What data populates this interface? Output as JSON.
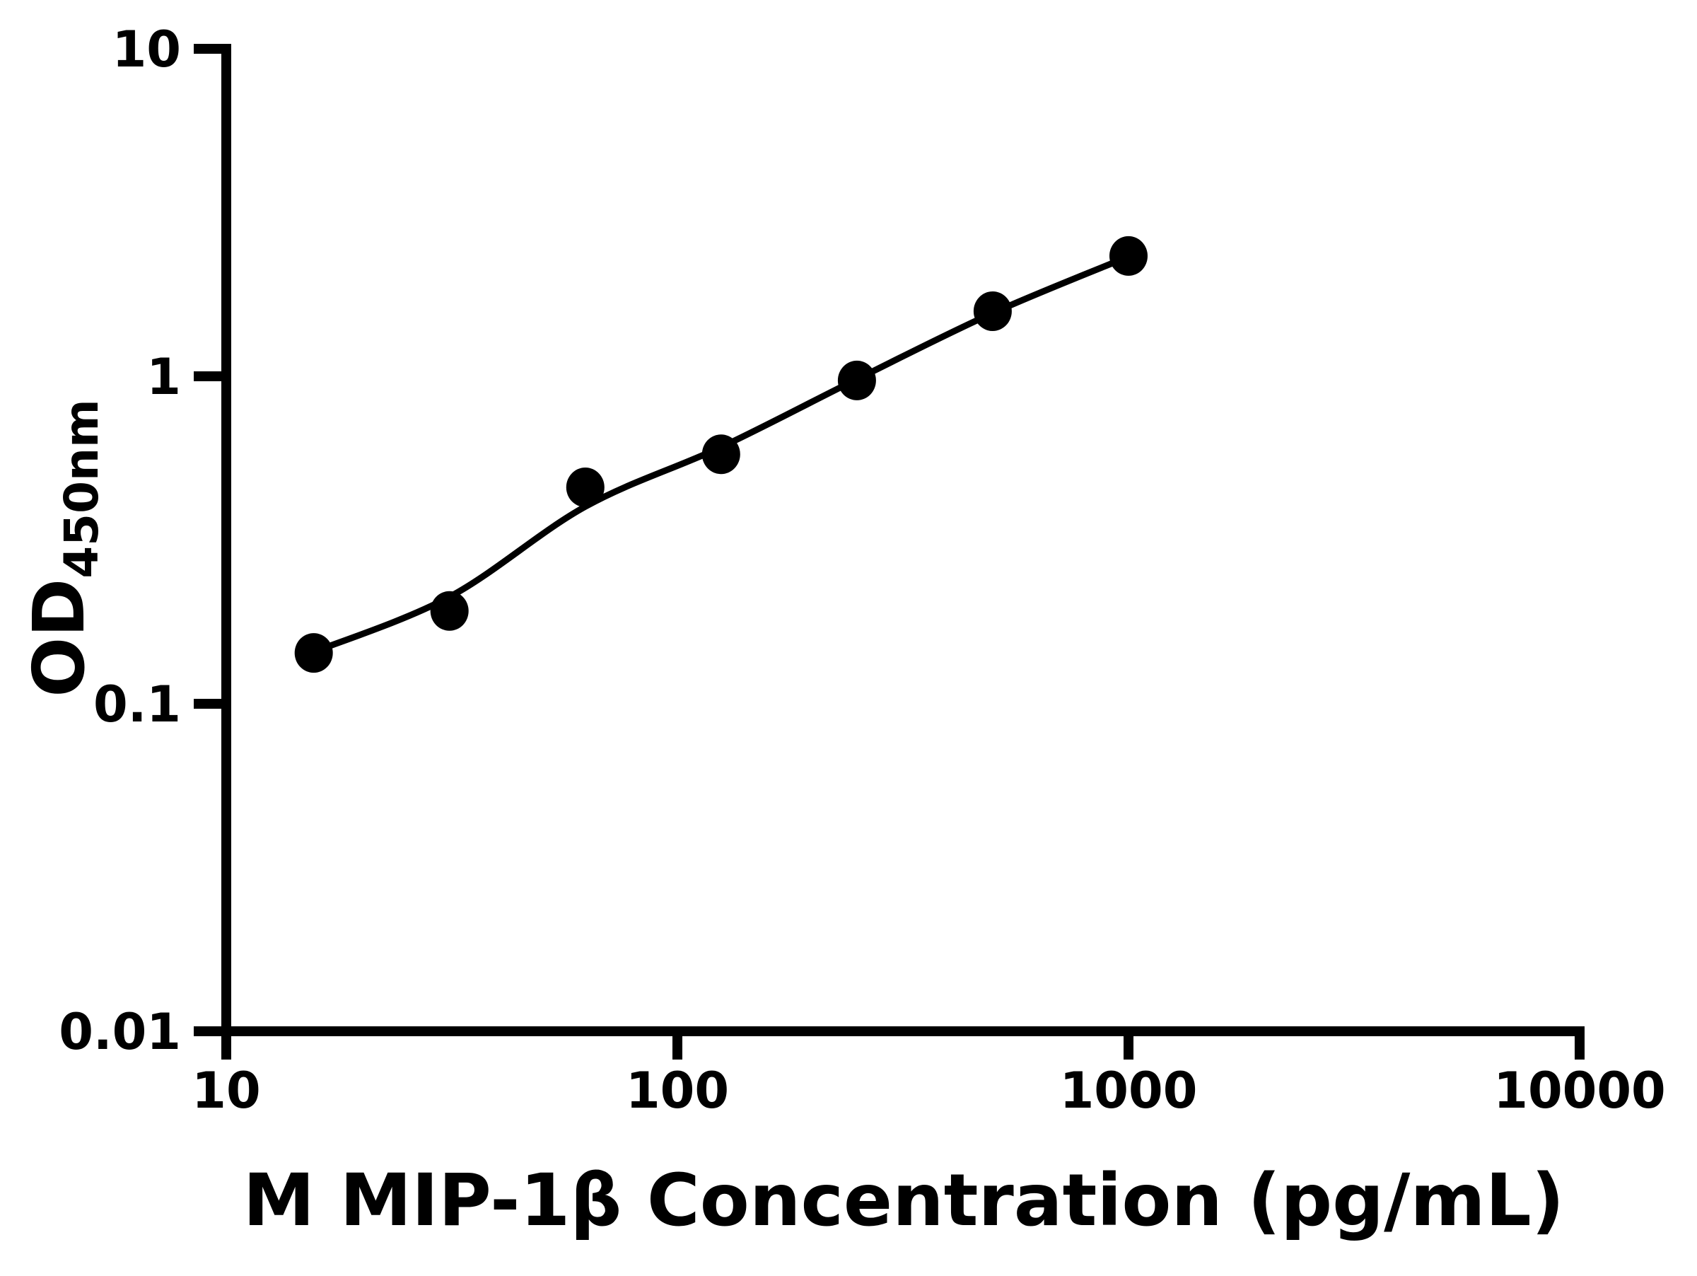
{
  "page": {
    "background": "#ffffff"
  },
  "chart_data": {
    "type": "scatter",
    "title": "",
    "xlabel": "M MIP-1β Concentration (pg/mL)",
    "ylabel": "OD",
    "ylabel_subscript": "450nm",
    "grid": false,
    "legend": false,
    "x_axis": {
      "scale": "log10",
      "min": 10,
      "max": 10000,
      "ticks": [
        {
          "value": 10,
          "label": "10"
        },
        {
          "value": 100,
          "label": "100"
        },
        {
          "value": 1000,
          "label": "1000"
        },
        {
          "value": 10000,
          "label": "10000"
        }
      ]
    },
    "y_axis": {
      "scale": "log10",
      "min": 0.01,
      "max": 10,
      "ticks": [
        {
          "value": 10,
          "label": "10"
        },
        {
          "value": 1,
          "label": "1"
        },
        {
          "value": 0.1,
          "label": "0.1"
        },
        {
          "value": 0.01,
          "label": "0.01"
        }
      ]
    },
    "colors": {
      "marker": "#000000",
      "line": "#000000",
      "axis": "#000000",
      "text": "#000000",
      "background": "#ffffff"
    },
    "series": [
      {
        "name": "standard-points",
        "type": "scatter",
        "points": [
          {
            "x": 15.625,
            "y": 0.143
          },
          {
            "x": 31.25,
            "y": 0.192
          },
          {
            "x": 62.5,
            "y": 0.458
          },
          {
            "x": 125,
            "y": 0.578
          },
          {
            "x": 250,
            "y": 0.971
          },
          {
            "x": 500,
            "y": 1.58
          },
          {
            "x": 1000,
            "y": 2.33
          }
        ]
      },
      {
        "name": "fit-line",
        "type": "line",
        "points": [
          {
            "x": 15.625,
            "y": 0.144
          },
          {
            "x": 31.25,
            "y": 0.212
          },
          {
            "x": 62.5,
            "y": 0.4
          },
          {
            "x": 125,
            "y": 0.608
          },
          {
            "x": 250,
            "y": 0.98
          },
          {
            "x": 500,
            "y": 1.56
          },
          {
            "x": 1000,
            "y": 2.32
          }
        ]
      }
    ]
  }
}
